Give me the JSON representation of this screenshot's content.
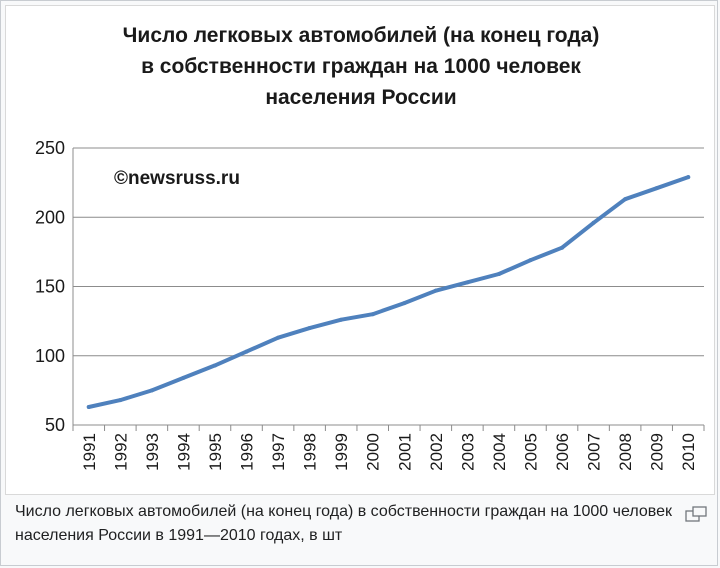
{
  "chart_data": {
    "type": "line",
    "title_lines": [
      "Число легковых автомобилей (на конец года)",
      "в собственности граждан на 1000 человек",
      "населения России"
    ],
    "watermark": "©newsruss.ru",
    "x": [
      "1991",
      "1992",
      "1993",
      "1994",
      "1995",
      "1996",
      "1997",
      "1998",
      "1999",
      "2000",
      "2001",
      "2002",
      "2003",
      "2004",
      "2005",
      "2006",
      "2007",
      "2008",
      "2009",
      "2010"
    ],
    "values": [
      63,
      68,
      75,
      84,
      93,
      103,
      113,
      120,
      126,
      130,
      138,
      147,
      153,
      159,
      169,
      178,
      196,
      213,
      221,
      229
    ],
    "ylim": [
      50,
      250
    ],
    "yticks": [
      50,
      100,
      150,
      200,
      250
    ],
    "grid": true,
    "legend": "none",
    "line_color": "#4f81bd"
  },
  "caption": "Число легковых автомобилей (на конец года) в собственности граждан на 1000 человек населения России в 1991—2010 годах, в шт",
  "icons": {
    "magnify": "magnify-icon"
  }
}
